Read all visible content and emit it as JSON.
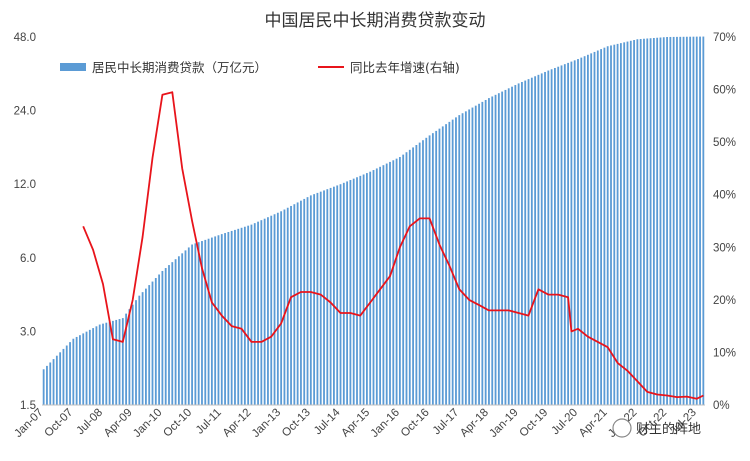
{
  "chart_data": {
    "type": "bar+line",
    "title": "中国居民中长期消费贷款变动",
    "legend": {
      "bar_label": "居民中长期消费贷款（万亿元）",
      "line_label": "同比去年增速(右轴)",
      "placement": "top-left"
    },
    "colors": {
      "bar": "#5b9bd5",
      "line": "#e8141b"
    },
    "y_left": {
      "scale": "log",
      "ticks": [
        "1.5",
        "3.0",
        "6.0",
        "12.0",
        "24.0",
        "48.0"
      ],
      "range": [
        1.5,
        48
      ],
      "unit": "万亿元"
    },
    "y_right": {
      "ticks": [
        "0%",
        "10%",
        "20%",
        "30%",
        "40%",
        "50%",
        "60%",
        "70%"
      ],
      "range": [
        0,
        70
      ]
    },
    "x_ticks": [
      "Jan-07",
      "Oct-07",
      "Jul-08",
      "Apr-09",
      "Jan-10",
      "Oct-10",
      "Jul-11",
      "Apr-12",
      "Jan-13",
      "Oct-13",
      "Jul-14",
      "Apr-15",
      "Jan-16",
      "Oct-16",
      "Jul-17",
      "Apr-18",
      "Jan-19",
      "Oct-19",
      "Jul-20",
      "Apr-21",
      "Jan-22",
      "Oct-22",
      "Jul-23"
    ],
    "x_range": [
      "2007-01",
      "2023-09"
    ],
    "bar_anchors": [
      [
        "2007-01",
        2.1
      ],
      [
        "2007-10",
        2.8
      ],
      [
        "2008-06",
        3.2
      ],
      [
        "2009-01",
        3.4
      ],
      [
        "2009-06",
        4.2
      ],
      [
        "2010-01",
        5.3
      ],
      [
        "2010-10",
        6.8
      ],
      [
        "2011-07",
        7.5
      ],
      [
        "2012-04",
        8.2
      ],
      [
        "2013-01",
        9.3
      ],
      [
        "2013-10",
        10.8
      ],
      [
        "2014-07",
        12.0
      ],
      [
        "2015-04",
        13.5
      ],
      [
        "2016-01",
        15.5
      ],
      [
        "2016-10",
        19.0
      ],
      [
        "2017-07",
        23.0
      ],
      [
        "2018-04",
        27.0
      ],
      [
        "2019-01",
        31.0
      ],
      [
        "2019-10",
        35.0
      ],
      [
        "2020-07",
        39.0
      ],
      [
        "2021-04",
        44.0
      ],
      [
        "2022-01",
        47.0
      ],
      [
        "2022-10",
        48.0
      ],
      [
        "2023-09",
        48.2
      ]
    ],
    "growth_series": [
      [
        "2008-01",
        34
      ],
      [
        "2008-04",
        29.5
      ],
      [
        "2008-07",
        23
      ],
      [
        "2008-10",
        12.5
      ],
      [
        "2009-01",
        12
      ],
      [
        "2009-04",
        20
      ],
      [
        "2009-07",
        32
      ],
      [
        "2009-10",
        47
      ],
      [
        "2010-01",
        59
      ],
      [
        "2010-04",
        59.5
      ],
      [
        "2010-07",
        45
      ],
      [
        "2010-10",
        35
      ],
      [
        "2011-01",
        26
      ],
      [
        "2011-04",
        19.5
      ],
      [
        "2011-07",
        17
      ],
      [
        "2011-10",
        15
      ],
      [
        "2012-01",
        14.5
      ],
      [
        "2012-04",
        12
      ],
      [
        "2012-07",
        12
      ],
      [
        "2012-10",
        13
      ],
      [
        "2013-01",
        15.5
      ],
      [
        "2013-04",
        20.5
      ],
      [
        "2013-07",
        21.5
      ],
      [
        "2013-10",
        21.5
      ],
      [
        "2014-01",
        21
      ],
      [
        "2014-04",
        19.5
      ],
      [
        "2014-07",
        17.5
      ],
      [
        "2014-10",
        17.5
      ],
      [
        "2015-01",
        17
      ],
      [
        "2015-04",
        19.5
      ],
      [
        "2015-07",
        22
      ],
      [
        "2015-10",
        24.5
      ],
      [
        "2016-01",
        30
      ],
      [
        "2016-04",
        34
      ],
      [
        "2016-07",
        35.5
      ],
      [
        "2016-10",
        35.5
      ],
      [
        "2017-01",
        30.5
      ],
      [
        "2017-04",
        26.5
      ],
      [
        "2017-07",
        22
      ],
      [
        "2017-10",
        20
      ],
      [
        "2018-01",
        19
      ],
      [
        "2018-04",
        18
      ],
      [
        "2018-07",
        18
      ],
      [
        "2018-10",
        18
      ],
      [
        "2019-01",
        17.5
      ],
      [
        "2019-04",
        17
      ],
      [
        "2019-07",
        22
      ],
      [
        "2019-10",
        21
      ],
      [
        "2020-01",
        21
      ],
      [
        "2020-04",
        20.5
      ],
      [
        "2020-05",
        14
      ],
      [
        "2020-07",
        14.5
      ],
      [
        "2020-10",
        13
      ],
      [
        "2021-01",
        12
      ],
      [
        "2021-04",
        11
      ],
      [
        "2021-07",
        8
      ],
      [
        "2021-10",
        6.5
      ],
      [
        "2022-01",
        4.5
      ],
      [
        "2022-04",
        2.5
      ],
      [
        "2022-07",
        2
      ],
      [
        "2022-10",
        1.8
      ],
      [
        "2023-01",
        1.5
      ],
      [
        "2023-04",
        1.6
      ],
      [
        "2023-07",
        1.2
      ],
      [
        "2023-09",
        1.8
      ]
    ]
  },
  "watermark": "财主的阵地"
}
